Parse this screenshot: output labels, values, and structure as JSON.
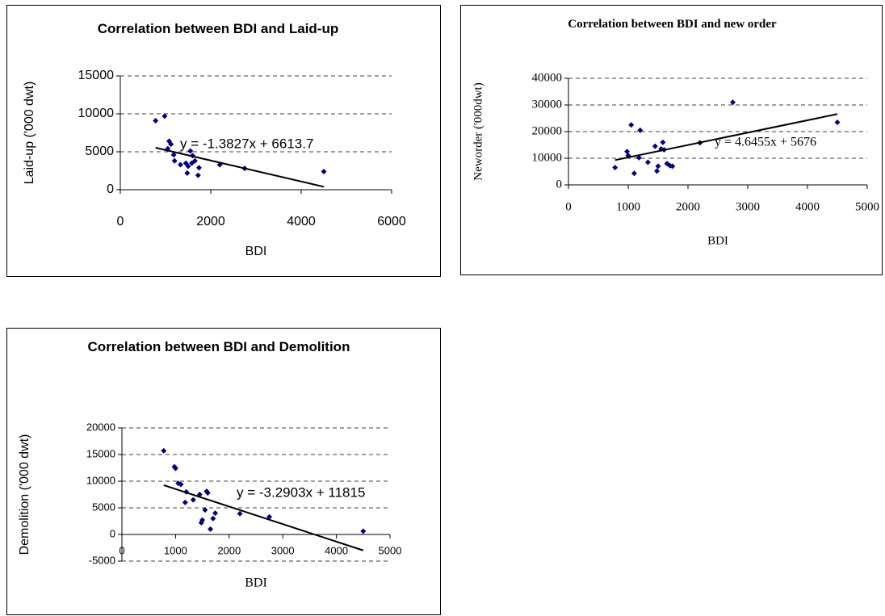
{
  "chart_data": [
    {
      "type": "scatter",
      "title": "Correlation between BDI and Laid-up",
      "xlabel": "BDI",
      "ylabel": "Laid-up ('000 dwt)",
      "x": [
        780,
        980,
        1050,
        1080,
        1120,
        1180,
        1200,
        1330,
        1450,
        1480,
        1500,
        1550,
        1580,
        1600,
        1650,
        1720,
        1740,
        2200,
        2750,
        4500
      ],
      "y": [
        9100,
        9700,
        5400,
        6400,
        6000,
        4600,
        3800,
        3300,
        3500,
        2200,
        3100,
        5100,
        3500,
        4500,
        3800,
        1900,
        2900,
        3300,
        2800,
        2400
      ],
      "color": "#000080",
      "trendline": {
        "slope": -1.3827,
        "intercept": 6613.7,
        "label": "y = -1.3827x + 6613.7"
      },
      "xlim": [
        0,
        6000
      ],
      "xticks": [
        0,
        2000,
        4000,
        6000
      ],
      "ylim": [
        0,
        15000
      ],
      "yticks": [
        0,
        5000,
        10000,
        15000
      ],
      "grid": true
    },
    {
      "type": "scatter",
      "title": "Correlation between BDI and new order",
      "xlabel": "BDI",
      "ylabel": "Neworder ('000dwt)",
      "x": [
        780,
        980,
        1000,
        1050,
        1100,
        1180,
        1200,
        1330,
        1450,
        1480,
        1500,
        1550,
        1580,
        1600,
        1650,
        1700,
        1740,
        2200,
        2750,
        4500
      ],
      "y": [
        6500,
        12500,
        11000,
        22500,
        4300,
        10200,
        20500,
        8500,
        14500,
        5200,
        7000,
        13500,
        16000,
        13200,
        8000,
        7200,
        7000,
        15800,
        31000,
        23500
      ],
      "color": "#000080",
      "trendline": {
        "slope": 4.6455,
        "intercept": 5676,
        "label": "y = 4.6455x + 5676"
      },
      "xlim": [
        0,
        5000
      ],
      "xticks": [
        0,
        1000,
        2000,
        3000,
        4000,
        5000
      ],
      "ylim": [
        0,
        40000
      ],
      "yticks": [
        0,
        10000,
        20000,
        30000,
        40000
      ],
      "grid": true
    },
    {
      "type": "scatter",
      "title": "Correlation between BDI and Demolition",
      "xlabel": "BDI",
      "ylabel": "Demolition ('000 dwt)",
      "x": [
        780,
        980,
        1000,
        1050,
        1100,
        1180,
        1200,
        1330,
        1450,
        1480,
        1500,
        1550,
        1580,
        1600,
        1650,
        1700,
        1740,
        2200,
        2750,
        4500
      ],
      "y": [
        15700,
        12700,
        12400,
        9600,
        9400,
        6000,
        8000,
        6500,
        7500,
        2200,
        2700,
        4600,
        8100,
        7800,
        1000,
        3000,
        4000,
        3900,
        3300,
        600
      ],
      "color": "#000080",
      "trendline": {
        "slope": -3.2903,
        "intercept": 11815,
        "label": "y = -3.2903x + 11815"
      },
      "xlim": [
        0,
        5000
      ],
      "xticks": [
        0,
        1000,
        2000,
        3000,
        4000,
        5000
      ],
      "ylim": [
        -5000,
        20000
      ],
      "yticks": [
        -5000,
        0,
        5000,
        10000,
        15000,
        20000
      ],
      "grid": true
    }
  ]
}
